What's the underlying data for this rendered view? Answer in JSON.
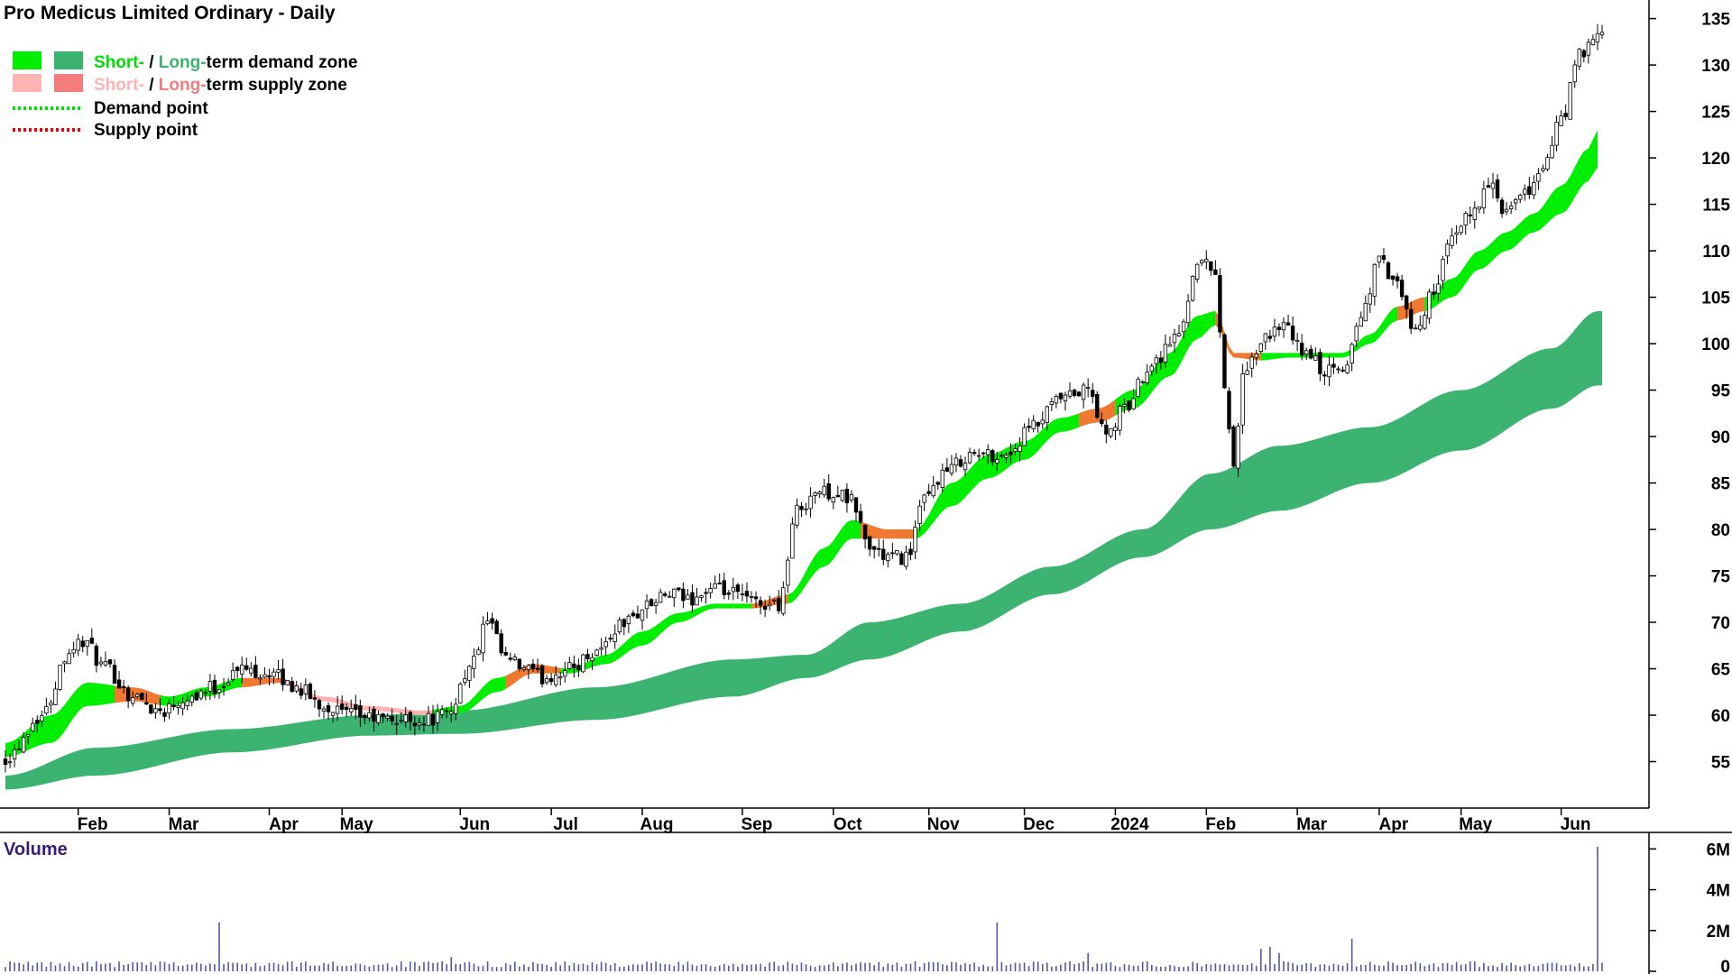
{
  "title": "Pro Medicus Limited Ordinary - Daily",
  "legend": {
    "demand_zone": {
      "short": "Short-",
      "sep": " / ",
      "long": "Long-",
      "rest": "term demand zone"
    },
    "supply_zone": {
      "short": "Short-",
      "sep": " / ",
      "long": "Long-",
      "rest": "term supply zone"
    },
    "demand_point": "Demand point",
    "supply_point": "Supply point"
  },
  "colors": {
    "short_demand": "#00ee00",
    "long_demand": "#3cb371",
    "short_supply": "#ffb3b3",
    "long_supply": "#f47c7c",
    "transition": "#f07830",
    "volume_bar": "#5555aa",
    "volume_title": "#3b1b7a"
  },
  "chart_data": [
    {
      "type": "candlestick",
      "title": "Pro Medicus Limited Ordinary - Daily",
      "ylim": [
        50,
        137
      ],
      "y_ticks": [
        55,
        60,
        65,
        70,
        75,
        80,
        85,
        90,
        95,
        100,
        105,
        110,
        115,
        120,
        125,
        130,
        135
      ],
      "x_tick_labels": [
        "Feb",
        "Mar",
        "Apr",
        "May",
        "Jun",
        "Jul",
        "Aug",
        "Sep",
        "Oct",
        "Nov",
        "Dec",
        "2024",
        "Feb",
        "Mar",
        "Apr",
        "May",
        "Jun"
      ],
      "x_tick_index": [
        16,
        36,
        58,
        74,
        100,
        120,
        140,
        162,
        182,
        203,
        224,
        244,
        264,
        284,
        302,
        320,
        342
      ],
      "close_knots": [
        [
          0,
          55.5
        ],
        [
          8,
          60
        ],
        [
          14,
          67
        ],
        [
          17,
          68
        ],
        [
          22,
          65
        ],
        [
          28,
          62
        ],
        [
          34,
          60.5
        ],
        [
          40,
          62
        ],
        [
          46,
          63
        ],
        [
          52,
          65
        ],
        [
          58,
          64.5
        ],
        [
          64,
          63
        ],
        [
          70,
          61
        ],
        [
          76,
          60
        ],
        [
          84,
          59.5
        ],
        [
          92,
          59.5
        ],
        [
          97,
          60
        ],
        [
          102,
          65
        ],
        [
          106,
          70
        ],
        [
          110,
          66
        ],
        [
          114,
          65
        ],
        [
          118,
          64
        ],
        [
          124,
          65
        ],
        [
          130,
          67
        ],
        [
          136,
          70
        ],
        [
          142,
          72
        ],
        [
          146,
          73
        ],
        [
          150,
          72.5
        ],
        [
          156,
          73.5
        ],
        [
          160,
          73
        ],
        [
          166,
          72
        ],
        [
          170,
          72
        ],
        [
          174,
          82
        ],
        [
          178,
          84
        ],
        [
          182,
          84
        ],
        [
          186,
          83
        ],
        [
          190,
          78
        ],
        [
          194,
          77
        ],
        [
          198,
          77
        ],
        [
          202,
          83
        ],
        [
          206,
          86
        ],
        [
          212,
          88
        ],
        [
          220,
          88
        ],
        [
          226,
          91
        ],
        [
          232,
          94
        ],
        [
          238,
          95
        ],
        [
          242,
          90
        ],
        [
          246,
          93
        ],
        [
          252,
          98
        ],
        [
          258,
          101
        ],
        [
          262,
          109
        ],
        [
          266,
          108
        ],
        [
          268,
          95
        ],
        [
          270,
          87
        ],
        [
          272,
          96
        ],
        [
          276,
          100
        ],
        [
          280,
          102
        ],
        [
          286,
          99
        ],
        [
          290,
          97
        ],
        [
          294,
          97
        ],
        [
          298,
          103
        ],
        [
          302,
          109
        ],
        [
          306,
          106
        ],
        [
          310,
          101
        ],
        [
          314,
          106
        ],
        [
          318,
          111
        ],
        [
          322,
          114
        ],
        [
          326,
          117
        ],
        [
          330,
          114
        ],
        [
          334,
          116
        ],
        [
          338,
          119
        ],
        [
          342,
          124
        ],
        [
          346,
          131
        ],
        [
          350,
          133
        ]
      ],
      "short_zone_upper_knots": [
        [
          0,
          57
        ],
        [
          10,
          60
        ],
        [
          18,
          63.5
        ],
        [
          28,
          63
        ],
        [
          36,
          62
        ],
        [
          44,
          63
        ],
        [
          52,
          64
        ],
        [
          60,
          64
        ],
        [
          70,
          62
        ],
        [
          80,
          61
        ],
        [
          92,
          60.5
        ],
        [
          100,
          61
        ],
        [
          108,
          64
        ],
        [
          116,
          65.5
        ],
        [
          124,
          65
        ],
        [
          132,
          66.5
        ],
        [
          140,
          69
        ],
        [
          148,
          71
        ],
        [
          156,
          72
        ],
        [
          164,
          72
        ],
        [
          172,
          73
        ],
        [
          180,
          78
        ],
        [
          186,
          81
        ],
        [
          194,
          80
        ],
        [
          200,
          80
        ],
        [
          208,
          85
        ],
        [
          216,
          88
        ],
        [
          224,
          89.5
        ],
        [
          232,
          92
        ],
        [
          240,
          93
        ],
        [
          248,
          95
        ],
        [
          256,
          99
        ],
        [
          262,
          103
        ],
        [
          266,
          103.5
        ],
        [
          270,
          99
        ],
        [
          276,
          99
        ],
        [
          282,
          99
        ],
        [
          288,
          99
        ],
        [
          294,
          99
        ],
        [
          300,
          101
        ],
        [
          306,
          104
        ],
        [
          312,
          105
        ],
        [
          318,
          107
        ],
        [
          324,
          110
        ],
        [
          330,
          112
        ],
        [
          336,
          114
        ],
        [
          342,
          117
        ],
        [
          348,
          121
        ],
        [
          350,
          123
        ]
      ],
      "short_zone_lower_knots": [
        [
          0,
          55.5
        ],
        [
          10,
          57
        ],
        [
          18,
          61
        ],
        [
          28,
          61.5
        ],
        [
          36,
          61
        ],
        [
          44,
          62
        ],
        [
          52,
          63
        ],
        [
          60,
          63.5
        ],
        [
          70,
          61.5
        ],
        [
          80,
          60.5
        ],
        [
          92,
          60
        ],
        [
          100,
          60.2
        ],
        [
          108,
          62.5
        ],
        [
          116,
          64.5
        ],
        [
          124,
          64.5
        ],
        [
          132,
          65.5
        ],
        [
          140,
          67.5
        ],
        [
          148,
          70
        ],
        [
          156,
          71.5
        ],
        [
          164,
          71.5
        ],
        [
          172,
          72
        ],
        [
          180,
          76
        ],
        [
          186,
          79
        ],
        [
          194,
          79
        ],
        [
          200,
          79
        ],
        [
          208,
          82.5
        ],
        [
          216,
          85.5
        ],
        [
          224,
          87.5
        ],
        [
          232,
          90.5
        ],
        [
          240,
          91.5
        ],
        [
          248,
          93
        ],
        [
          256,
          96.5
        ],
        [
          262,
          100.5
        ],
        [
          266,
          102
        ],
        [
          270,
          98.5
        ],
        [
          276,
          98.2
        ],
        [
          282,
          98.5
        ],
        [
          288,
          98.5
        ],
        [
          294,
          98.5
        ],
        [
          300,
          100
        ],
        [
          306,
          102.5
        ],
        [
          312,
          103.5
        ],
        [
          318,
          105
        ],
        [
          324,
          108
        ],
        [
          330,
          110
        ],
        [
          336,
          112
        ],
        [
          342,
          114
        ],
        [
          348,
          117.5
        ],
        [
          350,
          119
        ]
      ],
      "long_zone_upper_knots": [
        [
          0,
          53.5
        ],
        [
          20,
          56.5
        ],
        [
          50,
          58.5
        ],
        [
          80,
          60
        ],
        [
          100,
          60.5
        ],
        [
          130,
          63
        ],
        [
          160,
          66
        ],
        [
          176,
          66.5
        ],
        [
          190,
          70
        ],
        [
          210,
          72
        ],
        [
          230,
          76
        ],
        [
          250,
          80
        ],
        [
          265,
          86
        ],
        [
          280,
          89
        ],
        [
          300,
          91
        ],
        [
          320,
          95
        ],
        [
          340,
          99.5
        ],
        [
          350,
          103.5
        ]
      ],
      "long_zone_lower_knots": [
        [
          0,
          52
        ],
        [
          20,
          53.5
        ],
        [
          50,
          56
        ],
        [
          80,
          57.8
        ],
        [
          100,
          58
        ],
        [
          130,
          59.5
        ],
        [
          160,
          62
        ],
        [
          176,
          64
        ],
        [
          190,
          66
        ],
        [
          210,
          69
        ],
        [
          230,
          73
        ],
        [
          250,
          77
        ],
        [
          265,
          80
        ],
        [
          280,
          82
        ],
        [
          300,
          85
        ],
        [
          320,
          88.5
        ],
        [
          340,
          93
        ],
        [
          350,
          95.5
        ]
      ],
      "short_zone_state_segments": [
        {
          "from": 0,
          "to": 24,
          "state": "demand"
        },
        {
          "from": 24,
          "to": 34,
          "state": "transition"
        },
        {
          "from": 34,
          "to": 52,
          "state": "demand"
        },
        {
          "from": 52,
          "to": 62,
          "state": "transition"
        },
        {
          "from": 62,
          "to": 94,
          "state": "supply"
        },
        {
          "from": 94,
          "to": 110,
          "state": "demand"
        },
        {
          "from": 110,
          "to": 122,
          "state": "transition"
        },
        {
          "from": 122,
          "to": 164,
          "state": "demand"
        },
        {
          "from": 164,
          "to": 172,
          "state": "transition"
        },
        {
          "from": 172,
          "to": 188,
          "state": "demand"
        },
        {
          "from": 188,
          "to": 200,
          "state": "transition"
        },
        {
          "from": 200,
          "to": 236,
          "state": "demand"
        },
        {
          "from": 236,
          "to": 244,
          "state": "transition"
        },
        {
          "from": 244,
          "to": 266,
          "state": "demand"
        },
        {
          "from": 266,
          "to": 276,
          "state": "transition"
        },
        {
          "from": 276,
          "to": 300,
          "state": "demand"
        },
        {
          "from": 300,
          "to": 306,
          "state": "demand"
        },
        {
          "from": 306,
          "to": 312,
          "state": "transition"
        },
        {
          "from": 312,
          "to": 350,
          "state": "demand"
        }
      ],
      "n_bars": 352
    },
    {
      "type": "bar",
      "title": "Volume",
      "ylim": [
        0,
        6.5
      ],
      "y_ticks": [
        0,
        2,
        4,
        6
      ],
      "y_tick_labels": [
        "0",
        "2M",
        "4M",
        "6M"
      ],
      "baseline_millions": 0.35,
      "spikes": [
        [
          47,
          2.4
        ],
        [
          98,
          0.7
        ],
        [
          218,
          2.4
        ],
        [
          238,
          0.9
        ],
        [
          276,
          1.1
        ],
        [
          278,
          1.2
        ],
        [
          280,
          0.9
        ],
        [
          296,
          1.6
        ],
        [
          350,
          6.1
        ]
      ]
    }
  ]
}
